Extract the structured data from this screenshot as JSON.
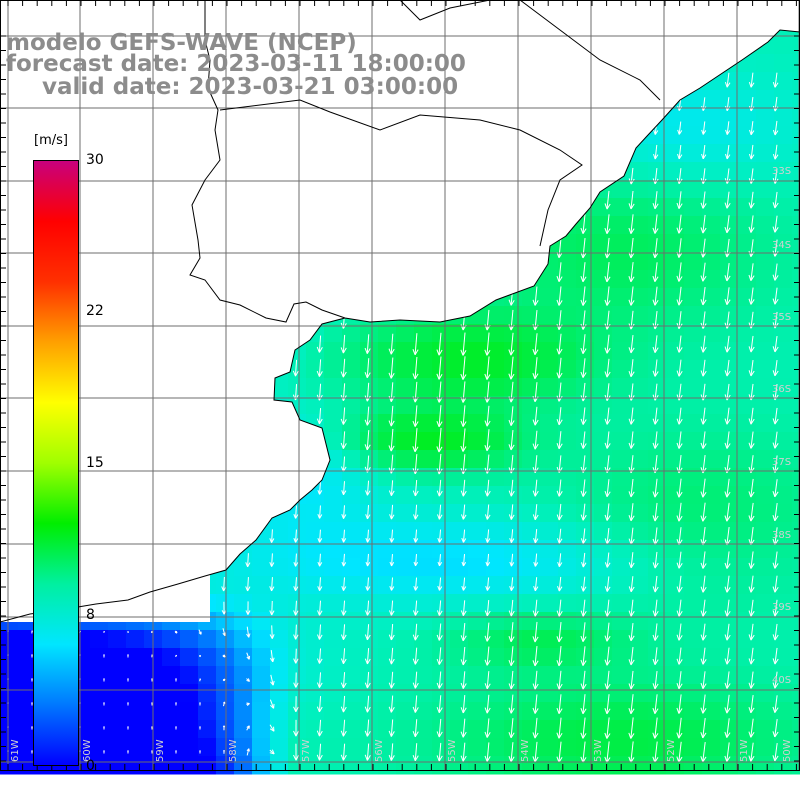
{
  "header": {
    "line1": "modelo GEFS-WAVE (NCEP)",
    "line2": "forecast date: 2023-03-11 18:00:00",
    "line3": "valid date: 2023-03-21 03:00:00"
  },
  "colorbar": {
    "unit": "[m/s]",
    "ticks": [
      "30",
      "22",
      "15",
      "8",
      "0"
    ],
    "tick_values": [
      30,
      22,
      15,
      8,
      0
    ],
    "range": [
      0,
      30
    ],
    "colors": [
      "#0000ff",
      "#0078ff",
      "#00e6ff",
      "#00f0a0",
      "#00ee00",
      "#a0ff00",
      "#ffff00",
      "#ffa000",
      "#ff3000",
      "#ff0000",
      "#c8007d"
    ]
  },
  "map": {
    "land_color": "#ffffff",
    "coast_color": "#000000",
    "grid_color": "#6e6e6e",
    "arrow_color": "#ffffff",
    "lat_labels": [
      "33S",
      "34S",
      "35S",
      "36S",
      "37S",
      "38S",
      "39S",
      "40S"
    ],
    "lon_labels": [
      "61W",
      "60W",
      "59W",
      "58W",
      "57W",
      "56W",
      "55W",
      "54W",
      "53W",
      "52W",
      "51W",
      "50W"
    ]
  }
}
